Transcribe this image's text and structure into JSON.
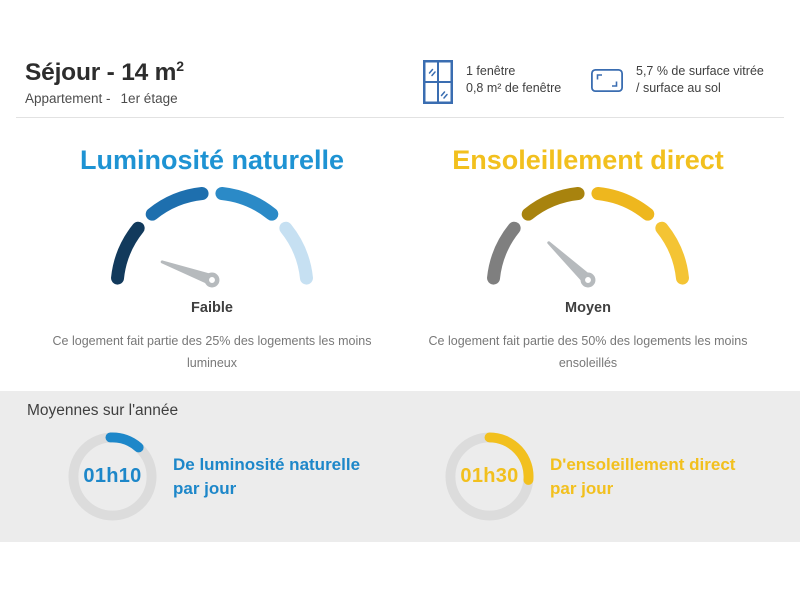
{
  "accent": {
    "blue": "#1e93d3",
    "yellow": "#f2c01e",
    "icon_blue": "#3a6db1"
  },
  "header": {
    "title": "Séjour - 14 m",
    "title_sup": "2",
    "subtitle_prefix": "Appartement -",
    "subtitle_value": "1er étage"
  },
  "info": {
    "window": {
      "line1": "1 fenêtre",
      "line2": "0,8 m² de fenêtre"
    },
    "surface": {
      "line1": "5,7 % de surface vitrée",
      "line2": "/ surface au sol"
    }
  },
  "gauges": [
    {
      "title": "Luminosité naturelle",
      "title_color": "#1e93d3",
      "level_label": "Faible",
      "description_line1": "Ce logement fait partie des 25% des logements les moins",
      "description_line2": "lumineux",
      "segment_colors": [
        "#123a5c",
        "#1e6fae",
        "#2b8ac7",
        "#c6e0f2"
      ],
      "needle_angle_deg": 160,
      "needle_length": 53
    },
    {
      "title": "Ensoleillement direct",
      "title_color": "#f2c01e",
      "level_label": "Moyen",
      "description_line1": "Ce logement fait partie des 50% des logements les moins",
      "description_line2": "ensoleillés",
      "segment_colors": [
        "#7f7f7f",
        "#a8830e",
        "#eeb71e",
        "#f4c434"
      ],
      "needle_angle_deg": 136.5,
      "needle_length": 54
    }
  ],
  "averages": {
    "heading": "Moyennes sur l'année",
    "items": [
      {
        "value": "01h10",
        "label_line1": "De luminosité naturelle",
        "label_line2": "par jour",
        "color": "#1d87c9",
        "arc_start_deg": -3,
        "arc_sweep_deg": 45
      },
      {
        "value": "01h30",
        "label_line1": "D'ensoleillement direct",
        "label_line2": "par jour",
        "color": "#f2c01e",
        "arc_start_deg": 0,
        "arc_sweep_deg": 95
      }
    ]
  }
}
